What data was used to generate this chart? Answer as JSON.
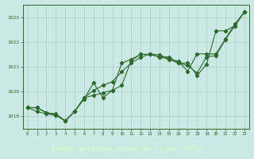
{
  "xlabel": "Graphe pression niveau de la mer (hPa)",
  "x": [
    0,
    1,
    2,
    3,
    4,
    5,
    6,
    7,
    8,
    9,
    10,
    11,
    12,
    13,
    14,
    15,
    16,
    17,
    18,
    19,
    20,
    21,
    22,
    23
  ],
  "line1": [
    1019.35,
    1019.35,
    1019.15,
    1019.05,
    1018.82,
    1019.2,
    1019.75,
    1019.85,
    1019.95,
    1020.05,
    1020.25,
    1021.25,
    1021.5,
    1021.5,
    1021.4,
    1021.4,
    1021.15,
    1021.05,
    1020.75,
    1021.4,
    1021.45,
    1022.1,
    1022.65,
    1023.2
  ],
  "line2": [
    1019.35,
    1019.2,
    1019.1,
    1019.05,
    1018.82,
    1019.2,
    1019.7,
    1020.35,
    1019.75,
    1020.05,
    1021.15,
    1021.3,
    1021.5,
    1021.5,
    1021.4,
    1021.3,
    1021.15,
    1021.15,
    1020.65,
    1021.1,
    1022.45,
    1022.45,
    1022.65,
    1023.2
  ],
  "line3": [
    1019.35,
    1019.35,
    1019.15,
    1019.1,
    1018.82,
    1019.2,
    1019.75,
    1020.05,
    1020.25,
    1020.4,
    1020.8,
    1021.15,
    1021.38,
    1021.52,
    1021.48,
    1021.32,
    1021.22,
    1020.82,
    1021.52,
    1021.52,
    1021.52,
    1022.12,
    1022.72,
    1023.2
  ],
  "line_color": "#2d6a2d",
  "bg_color": "#cce8e4",
  "grid_color": "#a8d0cc",
  "label_bg": "#336633",
  "label_fg": "#ccffcc",
  "ylim": [
    1018.5,
    1023.5
  ],
  "yticks": [
    1019,
    1020,
    1021,
    1022,
    1023
  ],
  "xticks": [
    0,
    1,
    2,
    3,
    4,
    5,
    6,
    7,
    8,
    9,
    10,
    11,
    12,
    13,
    14,
    15,
    16,
    17,
    18,
    19,
    20,
    21,
    22,
    23
  ],
  "marker": "D",
  "marker_size": 2.2,
  "line_width": 0.8
}
